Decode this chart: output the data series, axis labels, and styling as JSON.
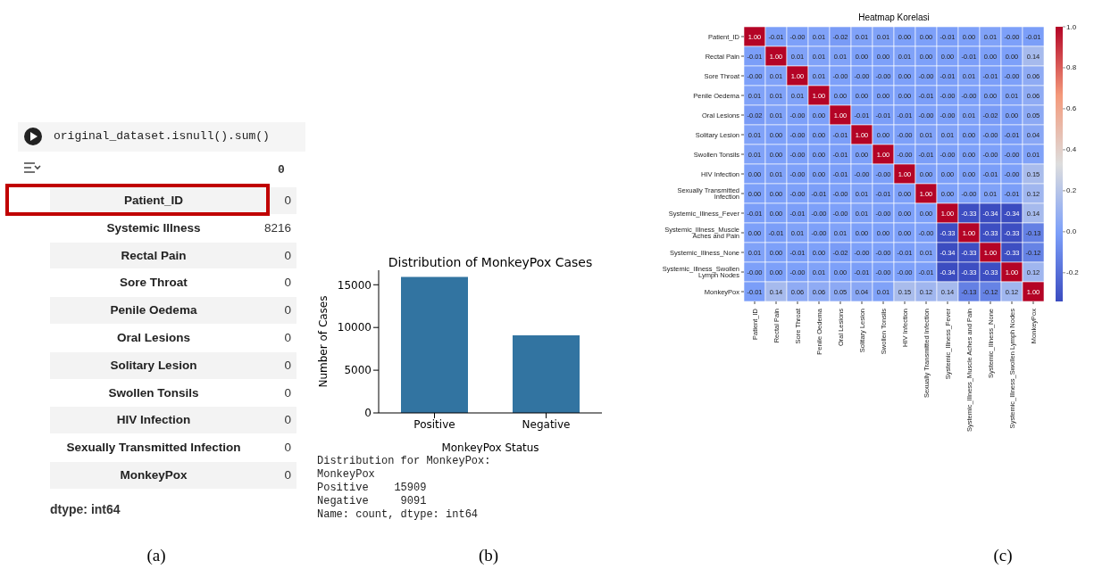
{
  "chart_data": [
    {
      "type": "other",
      "title": "original_dataset.isnull().sum()",
      "annotations": [
        "0",
        "Patient_ID",
        "0",
        "Systemic Illness",
        "8216",
        "Rectal Pain",
        "0",
        "Sore Throat",
        "0",
        "Penile Oedema",
        "0",
        "Oral Lesions",
        "0",
        "Solitary Lesion",
        "0",
        "Swollen Tonsils",
        "0",
        "HIV Infection",
        "0",
        "Sexually Transmitted Infection",
        "0",
        "MonkeyPox",
        "0",
        "dtype: int64",
        "(a)"
      ]
    },
    {
      "type": "bar",
      "title": "Distribution of MonkeyPox Cases",
      "xlabel": "MonkeyPox Status",
      "ylabel": "Number of Cases",
      "categories": [
        "Positive",
        "Negative"
      ],
      "values": [
        15909,
        9091
      ],
      "color": "#3274a1",
      "ylim": [
        0,
        16700
      ],
      "yticks": [
        0,
        5000,
        10000,
        15000
      ],
      "annotations": [
        "Distribution for MonkeyPox:",
        "MonkeyPox",
        "Positive    15909",
        "Negative     9091",
        "Name: count, dtype: int64",
        "(b)"
      ]
    },
    {
      "type": "heatmap",
      "title": "Heatmap Korelasi",
      "categories": [
        "Patient_ID",
        "Rectal Pain",
        "Sore Throat",
        "Penile Oedema",
        "Oral Lesions",
        "Solitary Lesion",
        "Swollen Tonsils",
        "HIV Infection",
        "Sexually Transmitted Infection",
        "Systemic_Illness_Fever",
        "Systemic_Illness_Muscle Aches and Pain",
        "Systemic_Illness_None",
        "Systemic_Illness_Swollen Lymph Nodes",
        "MonkeyPox"
      ],
      "y_categories": [
        "Patient_ID",
        "Rectal Pain",
        "Sore Throat",
        "Penile Oedema",
        "Oral Lesions",
        "Solitary Lesion",
        "Swollen Tonsils",
        "HIV Infection",
        "Sexually Transmitted Infection",
        "Systemic_Illness_Fever",
        "Systemic_Illness_Muscle Aches and Pain",
        "Systemic_Illness_None",
        "Systemic_Illness_Swollen Lymph Nodes",
        "MonkeyPox"
      ],
      "cells": [
        [
          1.0,
          -0.01,
          0,
          0.01,
          -0.02,
          0.01,
          0.01,
          0,
          0,
          -0.01,
          0,
          0.01,
          0,
          -0.01
        ],
        [
          -0.01,
          1.0,
          0.01,
          0.01,
          0.01,
          0,
          0,
          0.01,
          0,
          0,
          -0.01,
          0,
          0,
          0.14
        ],
        [
          0,
          0.01,
          1.0,
          0.01,
          0,
          0,
          0,
          0,
          0,
          -0.01,
          0.01,
          -0.01,
          0,
          0.06
        ],
        [
          0.01,
          0.01,
          0.01,
          1.0,
          0,
          0,
          0,
          0,
          -0.01,
          0,
          0,
          0,
          0.01,
          0.06
        ],
        [
          -0.02,
          0.01,
          0,
          0,
          1.0,
          -0.01,
          -0.01,
          -0.01,
          0,
          0,
          0.01,
          -0.02,
          0,
          0.05
        ],
        [
          0.01,
          0,
          0,
          0,
          -0.01,
          1.0,
          0,
          0,
          0.01,
          0.01,
          0,
          0,
          -0.01,
          0.04
        ],
        [
          0.01,
          0,
          0,
          0,
          -0.01,
          0,
          1.0,
          0,
          -0.01,
          0,
          0,
          0,
          0,
          0.01
        ],
        [
          0,
          0.01,
          0,
          0,
          -0.01,
          0,
          0,
          1.0,
          0,
          0,
          0,
          -0.01,
          0,
          0.15
        ],
        [
          0,
          0,
          0,
          -0.01,
          0,
          0.01,
          -0.01,
          0,
          1.0,
          0,
          0,
          0.01,
          -0.01,
          0.12
        ],
        [
          -0.01,
          0,
          -0.01,
          0,
          0,
          0.01,
          0,
          0,
          0,
          1.0,
          -0.33,
          -0.34,
          -0.34,
          0.14
        ],
        [
          0,
          -0.01,
          0.01,
          0,
          0.01,
          0,
          0,
          0,
          0,
          -0.33,
          1.0,
          -0.33,
          -0.33,
          -0.13
        ],
        [
          0.01,
          0,
          -0.01,
          0,
          -0.02,
          0,
          0,
          -0.01,
          0.01,
          -0.34,
          -0.33,
          1.0,
          -0.33,
          -0.12
        ],
        [
          0,
          0,
          0,
          0.01,
          0,
          -0.01,
          0,
          0,
          -0.01,
          -0.34,
          -0.33,
          -0.33,
          1.0,
          0.12
        ],
        [
          -0.01,
          0.14,
          0.06,
          0.06,
          0.05,
          0.04,
          0.01,
          0.15,
          0.12,
          0.14,
          -0.13,
          -0.12,
          0.12,
          1.0
        ]
      ],
      "cell_labels": [
        [
          "1.00",
          "-0.01",
          "-0.00",
          "0.01",
          "-0.02",
          "0.01",
          "0.01",
          "0.00",
          "0.00",
          "-0.01",
          "0.00",
          "0.01",
          "-0.00",
          "-0.01"
        ],
        [
          "-0.01",
          "1.00",
          "0.01",
          "0.01",
          "0.01",
          "0.00",
          "0.00",
          "0.01",
          "0.00",
          "0.00",
          "-0.01",
          "0.00",
          "0.00",
          "0.14"
        ],
        [
          "-0.00",
          "0.01",
          "1.00",
          "0.01",
          "-0.00",
          "-0.00",
          "-0.00",
          "0.00",
          "-0.00",
          "-0.01",
          "0.01",
          "-0.01",
          "-0.00",
          "0.06"
        ],
        [
          "0.01",
          "0.01",
          "0.01",
          "1.00",
          "0.00",
          "0.00",
          "0.00",
          "0.00",
          "-0.01",
          "-0.00",
          "-0.00",
          "0.00",
          "0.01",
          "0.06"
        ],
        [
          "-0.02",
          "0.01",
          "-0.00",
          "0.00",
          "1.00",
          "-0.01",
          "-0.01",
          "-0.01",
          "-0.00",
          "-0.00",
          "0.01",
          "-0.02",
          "0.00",
          "0.05"
        ],
        [
          "0.01",
          "0.00",
          "-0.00",
          "0.00",
          "-0.01",
          "1.00",
          "0.00",
          "-0.00",
          "0.01",
          "0.01",
          "0.00",
          "-0.00",
          "-0.01",
          "0.04"
        ],
        [
          "0.01",
          "0.00",
          "-0.00",
          "0.00",
          "-0.01",
          "0.00",
          "1.00",
          "-0.00",
          "-0.01",
          "-0.00",
          "0.00",
          "-0.00",
          "-0.00",
          "0.01"
        ],
        [
          "0.00",
          "0.01",
          "-0.00",
          "0.00",
          "-0.01",
          "-0.00",
          "-0.00",
          "1.00",
          "0.00",
          "0.00",
          "0.00",
          "-0.01",
          "-0.00",
          "0.15"
        ],
        [
          "0.00",
          "0.00",
          "-0.00",
          "-0.01",
          "-0.00",
          "0.01",
          "-0.01",
          "0.00",
          "1.00",
          "0.00",
          "-0.00",
          "0.01",
          "-0.01",
          "0.12"
        ],
        [
          "-0.01",
          "0.00",
          "-0.01",
          "-0.00",
          "-0.00",
          "0.01",
          "-0.00",
          "0.00",
          "0.00",
          "1.00",
          "-0.33",
          "-0.34",
          "-0.34",
          "0.14"
        ],
        [
          "0.00",
          "-0.01",
          "0.01",
          "-0.00",
          "0.01",
          "0.00",
          "0.00",
          "0.00",
          "-0.00",
          "-0.33",
          "1.00",
          "-0.33",
          "-0.33",
          "-0.13"
        ],
        [
          "0.01",
          "0.00",
          "-0.01",
          "0.00",
          "-0.02",
          "-0.00",
          "-0.00",
          "-0.01",
          "0.01",
          "-0.34",
          "-0.33",
          "1.00",
          "-0.33",
          "-0.12"
        ],
        [
          "-0.00",
          "0.00",
          "-0.00",
          "0.01",
          "0.00",
          "-0.01",
          "-0.00",
          "-0.00",
          "-0.01",
          "-0.34",
          "-0.33",
          "-0.33",
          "1.00",
          "0.12"
        ],
        [
          "-0.01",
          "0.14",
          "0.06",
          "0.06",
          "0.05",
          "0.04",
          "0.01",
          "0.15",
          "0.12",
          "0.14",
          "-0.13",
          "-0.12",
          "0.12",
          "1.00"
        ]
      ],
      "clim": [
        -0.34,
        1.0
      ],
      "cticks": [
        {
          "value": 1.0,
          "label": "1.0"
        },
        {
          "value": 0.8,
          "label": "0.8"
        },
        {
          "value": 0.6,
          "label": "0.6"
        },
        {
          "value": 0.4,
          "label": "0.4"
        },
        {
          "value": 0.2,
          "label": "0.2"
        },
        {
          "value": 0.0,
          "label": "0.0"
        },
        {
          "value": -0.2,
          "label": "-0.2"
        }
      ],
      "annotations": [
        "(c)"
      ]
    }
  ]
}
